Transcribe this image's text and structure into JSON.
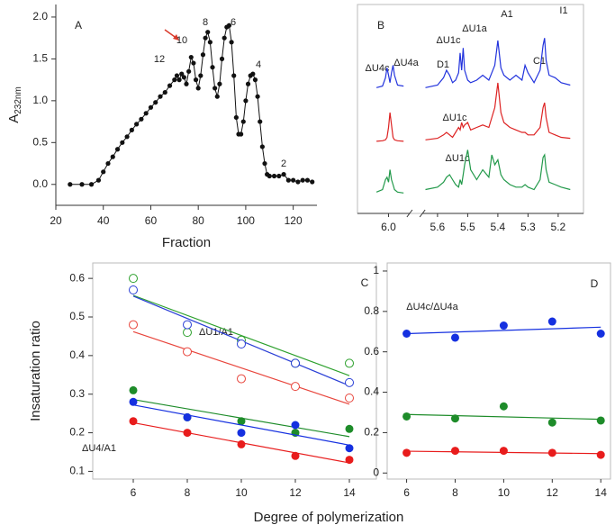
{
  "xlabel": "Degree of polymerization",
  "chart_data": [
    {
      "type": "line",
      "panel_label": "A",
      "xlabel": "Fraction",
      "ylabel": "A",
      "ylabel_sub": "232nm",
      "color": "#111111",
      "markers": true,
      "x": [
        26,
        31,
        35,
        38,
        40,
        42,
        44,
        46,
        48,
        50,
        52,
        54,
        56,
        58,
        60,
        62,
        64,
        66,
        68,
        70,
        71,
        72,
        73,
        74,
        75,
        76,
        77,
        78,
        79,
        80,
        81,
        82,
        83,
        84,
        85,
        86,
        87,
        88,
        89,
        90,
        91,
        92,
        93,
        94,
        95,
        96,
        97,
        98,
        99,
        100,
        101,
        102,
        103,
        104,
        105,
        106,
        107,
        108,
        109,
        110,
        112,
        114,
        116,
        118,
        120,
        122,
        124,
        126,
        128
      ],
      "values": [
        0.0,
        0.0,
        0.0,
        0.05,
        0.15,
        0.25,
        0.33,
        0.42,
        0.5,
        0.57,
        0.65,
        0.72,
        0.78,
        0.85,
        0.92,
        0.98,
        1.05,
        1.1,
        1.18,
        1.25,
        1.3,
        1.25,
        1.32,
        1.28,
        1.2,
        1.35,
        1.52,
        1.45,
        1.25,
        1.15,
        1.3,
        1.55,
        1.75,
        1.82,
        1.7,
        1.4,
        1.15,
        1.05,
        1.2,
        1.5,
        1.75,
        1.88,
        1.9,
        1.7,
        1.3,
        0.8,
        0.6,
        0.6,
        0.75,
        1.0,
        1.2,
        1.3,
        1.32,
        1.25,
        1.05,
        0.75,
        0.45,
        0.25,
        0.12,
        0.1,
        0.1,
        0.1,
        0.12,
        0.05,
        0.05,
        0.03,
        0.05,
        0.05,
        0.03
      ],
      "xlim": [
        20,
        130
      ],
      "ylim": [
        -0.25,
        2.15
      ],
      "xticks": [
        20,
        40,
        60,
        80,
        100,
        120
      ],
      "yticks": [
        {
          "value": 0,
          "label": "0.0"
        },
        {
          "value": 0.5,
          "label": "0.5"
        },
        {
          "value": 1,
          "label": "1.0"
        },
        {
          "value": 1.5,
          "label": "1.5"
        },
        {
          "value": 2,
          "label": "2.0"
        }
      ],
      "annotations": [
        "12",
        "10",
        "8",
        "6",
        "4",
        "2"
      ]
    },
    {
      "type": "spectrum",
      "panel_label": "B",
      "x": [
        6.04,
        6.02,
        6.01,
        6.005,
        6.0,
        5.995,
        5.99,
        5.985,
        5.98,
        5.97,
        5.95,
        5.8,
        5.64,
        5.6,
        5.58,
        5.57,
        5.56,
        5.55,
        5.54,
        5.53,
        5.525,
        5.52,
        5.515,
        5.51,
        5.5,
        5.49,
        5.47,
        5.45,
        5.43,
        5.42,
        5.41,
        5.4,
        5.39,
        5.38,
        5.36,
        5.34,
        5.32,
        5.31,
        5.3,
        5.28,
        5.26,
        5.25,
        5.245,
        5.24,
        5.23,
        5.21,
        5.19,
        5.16
      ],
      "series": [
        {
          "color": "#2233dd",
          "values": [
            0.05,
            0.08,
            0.25,
            0.45,
            0.3,
            0.15,
            0.35,
            0.5,
            0.3,
            0.1,
            0.08,
            null,
            0.05,
            0.1,
            0.25,
            0.4,
            0.3,
            0.15,
            0.2,
            0.35,
            0.75,
            0.4,
            0.85,
            0.4,
            0.2,
            0.15,
            0.2,
            0.3,
            0.2,
            0.35,
            0.5,
            1.0,
            0.45,
            0.3,
            0.2,
            0.3,
            0.2,
            0.5,
            0.35,
            0.15,
            0.4,
            0.9,
            1.05,
            0.6,
            0.3,
            0.25,
            0.15,
            0.1
          ]
        },
        {
          "color": "#dd2222",
          "values": [
            0.02,
            0.03,
            0.05,
            0.1,
            0.3,
            0.6,
            0.35,
            0.1,
            0.05,
            0.03,
            0.02,
            null,
            0.05,
            0.08,
            0.15,
            0.2,
            0.15,
            0.1,
            0.2,
            0.3,
            0.25,
            0.4,
            0.3,
            0.35,
            0.4,
            0.25,
            0.3,
            0.35,
            0.3,
            0.5,
            0.7,
            1.2,
            0.6,
            0.4,
            0.3,
            0.25,
            0.2,
            0.2,
            0.15,
            0.15,
            0.3,
            0.7,
            0.8,
            0.5,
            0.2,
            0.15,
            0.1,
            0.08
          ]
        },
        {
          "color": "#22994a",
          "values": [
            0.05,
            0.1,
            0.3,
            0.35,
            0.25,
            0.5,
            0.3,
            0.2,
            0.1,
            0.05,
            0.03,
            null,
            0.1,
            0.15,
            0.25,
            0.35,
            0.4,
            0.3,
            0.2,
            0.15,
            0.3,
            0.2,
            0.4,
            0.6,
            0.9,
            0.5,
            0.3,
            0.5,
            0.35,
            0.8,
            0.6,
            0.7,
            0.4,
            0.3,
            0.2,
            0.15,
            0.15,
            0.2,
            0.15,
            0.1,
            0.3,
            0.75,
            0.8,
            0.5,
            0.25,
            0.2,
            0.15,
            0.1
          ]
        }
      ],
      "xlim": [
        6.07,
        5.14
      ],
      "xticks": [
        {
          "value": 6.0,
          "label": "6.0"
        },
        5.6,
        5.5,
        5.4,
        5.3,
        5.2
      ],
      "annotations": [
        "ΔU4c",
        "ΔU4a",
        "D1",
        "ΔU1c",
        "ΔU1a",
        "A1",
        "C1",
        "I1",
        "ΔU1c",
        "ΔU1c"
      ]
    },
    {
      "type": "scatter",
      "panel_label": "C",
      "ylabel": "Insaturation ratio",
      "trend": true,
      "x": [
        6,
        8,
        10,
        12,
        14
      ],
      "series": [
        {
          "color": "#2ca02c",
          "marker": "open",
          "values": [
            0.6,
            0.46,
            0.44,
            0.38,
            0.38
          ]
        },
        {
          "color": "#2a3fd6",
          "marker": "open",
          "values": [
            0.57,
            0.48,
            0.43,
            0.38,
            0.33
          ]
        },
        {
          "color": "#e8453c",
          "marker": "open",
          "values": [
            0.48,
            0.41,
            0.34,
            0.32,
            0.29
          ]
        },
        {
          "color": "#1e8c2a",
          "marker": "filled",
          "values": [
            0.31,
            0.24,
            0.23,
            0.2,
            0.21
          ]
        },
        {
          "color": "#1530e0",
          "marker": "filled",
          "values": [
            0.28,
            0.24,
            0.2,
            0.22,
            0.16
          ]
        },
        {
          "color": "#e81c1c",
          "marker": "filled",
          "values": [
            0.23,
            0.2,
            0.17,
            0.14,
            0.13
          ]
        }
      ],
      "xlim": [
        4.5,
        15
      ],
      "ylim": [
        0.08,
        0.64
      ],
      "xticks": [
        6,
        8,
        10,
        12,
        14
      ],
      "yticks": [
        0.1,
        0.2,
        0.3,
        0.4,
        0.5,
        0.6
      ],
      "annotations": [
        "ΔU1/A1",
        "ΔU4/A1"
      ]
    },
    {
      "type": "scatter",
      "panel_label": "D",
      "trend": true,
      "x": [
        6,
        8,
        10,
        12,
        14
      ],
      "series": [
        {
          "color": "#1530e0",
          "marker": "filled",
          "values": [
            0.69,
            0.67,
            0.73,
            0.75,
            0.69
          ]
        },
        {
          "color": "#1e8c2a",
          "marker": "filled",
          "values": [
            0.28,
            0.27,
            0.33,
            0.25,
            0.26
          ]
        },
        {
          "color": "#e81c1c",
          "marker": "filled",
          "values": [
            0.1,
            0.11,
            0.11,
            0.1,
            0.09
          ]
        }
      ],
      "xlim": [
        5.2,
        14.4
      ],
      "ylim": [
        -0.03,
        1.04
      ],
      "xticks": [
        6,
        8,
        10,
        12,
        14
      ],
      "yticks": [
        0,
        0.2,
        0.4,
        0.6,
        0.8,
        1
      ],
      "annotations": [
        "ΔU4c/ΔU4a"
      ]
    }
  ]
}
